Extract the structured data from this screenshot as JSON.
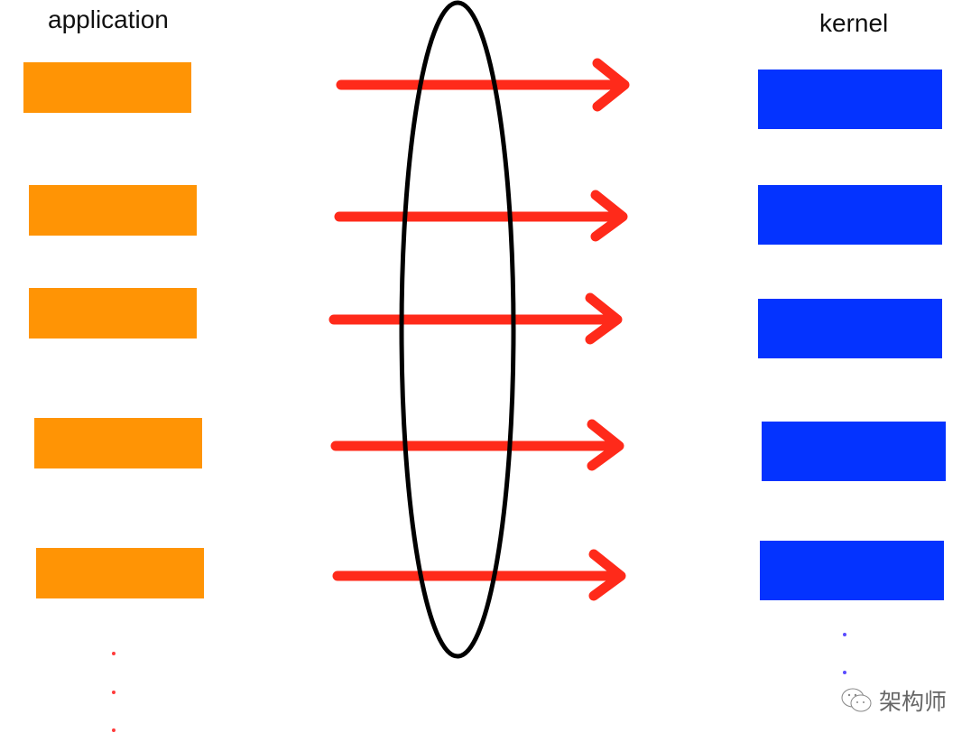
{
  "labels": {
    "application": "application",
    "kernel": "kernel"
  },
  "watermark": {
    "text": "架构师",
    "icon": "wechat-icon"
  },
  "colors": {
    "application": "#ff9405",
    "kernel": "#0433ff",
    "arrow": "#ff2a1a",
    "ellipse": "#000000"
  },
  "rows": 5
}
